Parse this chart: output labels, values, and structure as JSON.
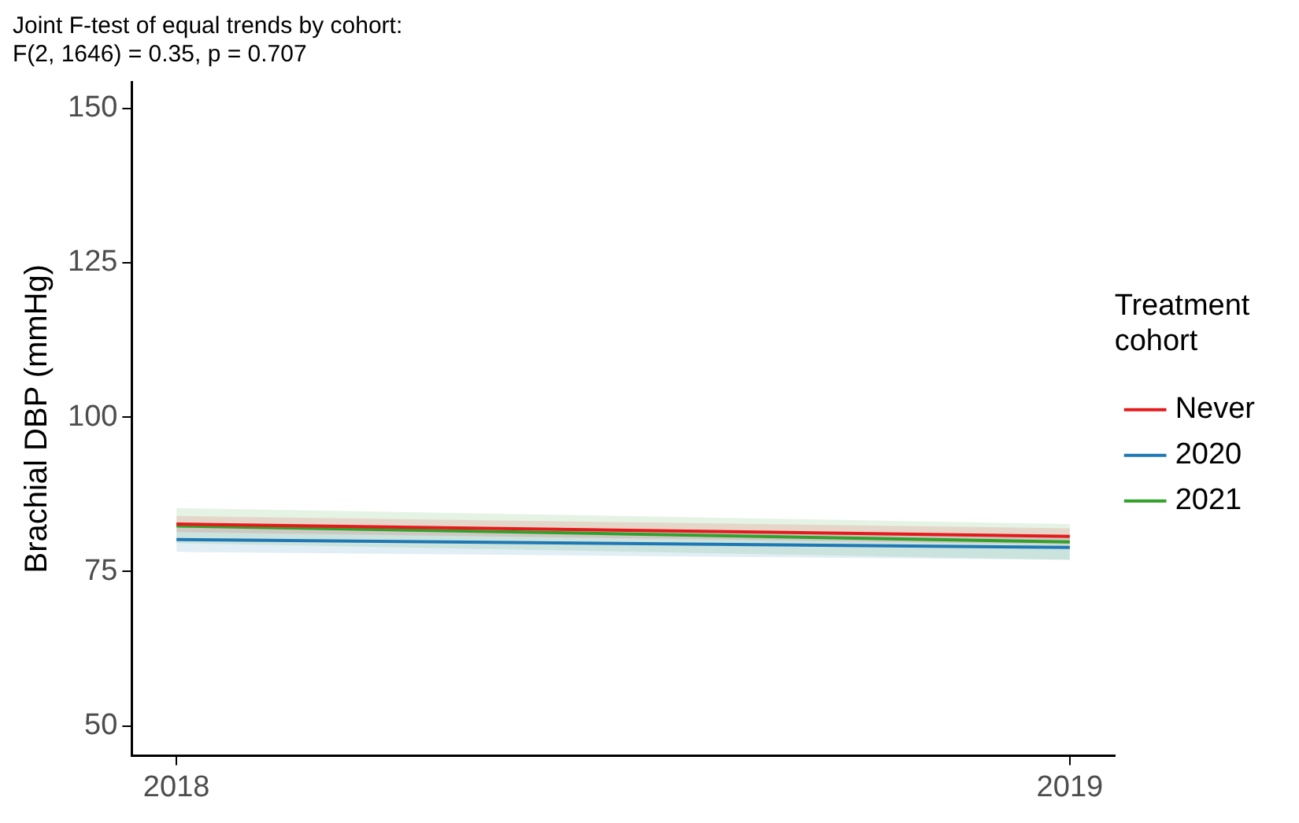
{
  "chart_data": {
    "type": "line",
    "title": "Joint F-test of equal trends by cohort:\nF(2, 1646) = 0.35, p = 0.707",
    "ylabel": "Brachial DBP (mmHg)",
    "legend_title": "Treatment\ncohort",
    "x": [
      2018,
      2019
    ],
    "xlim": [
      2017.95,
      2019.05
    ],
    "xticks": [
      2018,
      2019
    ],
    "ylim": [
      45.2,
      154.3
    ],
    "yticks": [
      50,
      75,
      100,
      125,
      150
    ],
    "grid": false,
    "legend": "right",
    "marker": "none",
    "line_style": "solid",
    "series": [
      {
        "name": "Never",
        "color": "#e41a1c",
        "values": [
          82.7,
          80.7
        ],
        "lower": [
          81.4,
          79.4
        ],
        "upper": [
          84.0,
          82.0
        ]
      },
      {
        "name": "2020",
        "color": "#1f78b4",
        "values": [
          80.2,
          78.9
        ],
        "lower": [
          78.2,
          76.9
        ],
        "upper": [
          82.2,
          80.9
        ]
      },
      {
        "name": "2021",
        "color": "#33a02c",
        "values": [
          82.4,
          79.8
        ],
        "lower": [
          79.6,
          76.9
        ],
        "upper": [
          85.3,
          82.7
        ]
      }
    ]
  }
}
